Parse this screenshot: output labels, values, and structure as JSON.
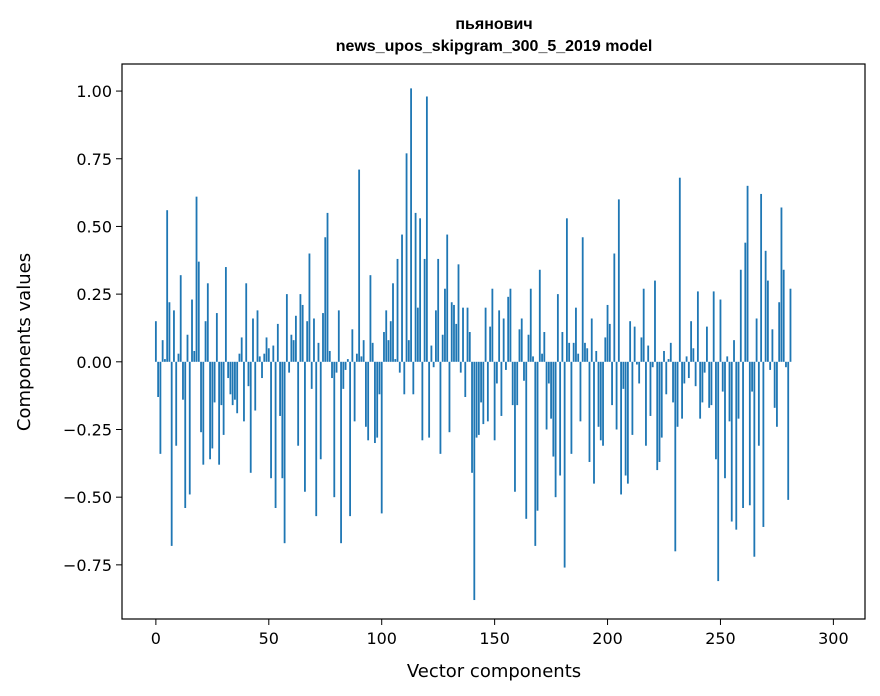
{
  "chart_data": {
    "type": "bar",
    "title": [
      "пьянович",
      "news_upos_skipgram_300_5_2019 model"
    ],
    "xlabel": "Vector components",
    "ylabel": "Components values",
    "xlim": [
      -15,
      314
    ],
    "ylim": [
      -0.95,
      1.1
    ],
    "xticks": [
      0,
      50,
      100,
      150,
      200,
      250,
      300
    ],
    "xtick_labels": [
      "0",
      "50",
      "100",
      "150",
      "200",
      "250",
      "300"
    ],
    "yticks": [
      -0.75,
      -0.5,
      -0.25,
      0.0,
      0.25,
      0.5,
      0.75,
      1.0
    ],
    "ytick_labels": [
      "−0.75",
      "−0.50",
      "−0.25",
      "0.00",
      "0.25",
      "0.50",
      "0.75",
      "1.00"
    ],
    "grid": false,
    "color": "#1f77b4",
    "bar_width": 0.8,
    "values": [
      0.15,
      -0.13,
      -0.34,
      0.08,
      0.01,
      0.56,
      0.22,
      -0.68,
      0.19,
      -0.31,
      0.03,
      0.32,
      -0.14,
      -0.54,
      0.1,
      -0.49,
      0.23,
      0.04,
      0.61,
      0.37,
      -0.26,
      -0.38,
      0.15,
      0.29,
      -0.36,
      -0.32,
      -0.15,
      0.18,
      -0.38,
      -0.16,
      -0.27,
      0.35,
      -0.06,
      -0.12,
      -0.16,
      -0.14,
      -0.19,
      0.03,
      0.09,
      -0.22,
      0.29,
      -0.09,
      -0.41,
      0.16,
      -0.18,
      0.19,
      0.02,
      -0.06,
      0.03,
      0.09,
      0.05,
      -0.43,
      0.06,
      -0.54,
      0.14,
      -0.2,
      -0.43,
      -0.67,
      0.25,
      -0.04,
      0.1,
      0.08,
      0.17,
      -0.31,
      0.25,
      0.21,
      -0.48,
      0.15,
      0.4,
      -0.1,
      0.16,
      -0.57,
      0.07,
      -0.36,
      0.18,
      0.46,
      0.55,
      0.04,
      -0.06,
      -0.5,
      -0.04,
      0.19,
      -0.67,
      -0.1,
      -0.03,
      0.01,
      -0.57,
      0.12,
      -0.22,
      0.03,
      0.71,
      0.02,
      0.08,
      -0.24,
      -0.29,
      0.32,
      0.07,
      -0.3,
      -0.28,
      -0.12,
      -0.56,
      0.11,
      0.19,
      0.08,
      0.15,
      0.29,
      0.01,
      0.38,
      -0.04,
      0.47,
      -0.12,
      0.77,
      0.08,
      1.01,
      -0.12,
      0.55,
      0.2,
      0.53,
      -0.29,
      0.38,
      0.98,
      -0.28,
      0.06,
      -0.02,
      0.19,
      0.38,
      -0.34,
      0.1,
      0.27,
      0.47,
      -0.26,
      0.22,
      0.21,
      0.14,
      0.36,
      -0.04,
      0.2,
      -0.13,
      0.2,
      0.11,
      -0.41,
      -0.88,
      -0.28,
      -0.27,
      -0.15,
      -0.23,
      0.2,
      -0.22,
      0.13,
      0.27,
      -0.29,
      -0.08,
      0.19,
      -0.2,
      0.16,
      -0.03,
      0.24,
      0.27,
      -0.16,
      -0.48,
      -0.16,
      0.12,
      0.16,
      -0.07,
      -0.58,
      0.1,
      0.27,
      0.02,
      -0.68,
      -0.55,
      0.34,
      0.03,
      0.11,
      -0.25,
      -0.08,
      -0.21,
      -0.35,
      -0.5,
      0.25,
      -0.42,
      0.11,
      -0.76,
      0.53,
      0.07,
      -0.34,
      0.07,
      0.2,
      0.03,
      -0.22,
      0.46,
      0.07,
      0.05,
      -0.37,
      0.16,
      -0.45,
      0.04,
      -0.24,
      -0.29,
      -0.31,
      0.09,
      0.21,
      0.14,
      -0.16,
      0.4,
      -0.25,
      0.6,
      -0.49,
      -0.1,
      -0.42,
      -0.45,
      0.15,
      -0.27,
      0.13,
      -0.01,
      -0.08,
      0.09,
      0.27,
      -0.31,
      0.06,
      -0.2,
      -0.02,
      0.3,
      -0.4,
      -0.37,
      -0.28,
      0.04,
      -0.12,
      0.01,
      0.07,
      -0.15,
      -0.7,
      -0.24,
      0.68,
      -0.21,
      -0.08,
      0.02,
      -0.06,
      0.15,
      0.05,
      -0.09,
      0.26,
      -0.21,
      -0.15,
      -0.04,
      0.13,
      -0.17,
      -0.16,
      0.26,
      -0.36,
      -0.81,
      0.23,
      -0.11,
      -0.43,
      0.02,
      -0.22,
      -0.59,
      0.08,
      -0.62,
      -0.21,
      0.34,
      -0.54,
      0.44,
      0.65,
      -0.53,
      -0.11,
      -0.72,
      0.16,
      -0.31,
      0.62,
      -0.61,
      0.41,
      0.3,
      -0.03,
      0.12,
      -0.17,
      -0.24,
      0.22,
      0.57,
      0.34,
      -0.02,
      -0.51,
      0.27
    ]
  }
}
